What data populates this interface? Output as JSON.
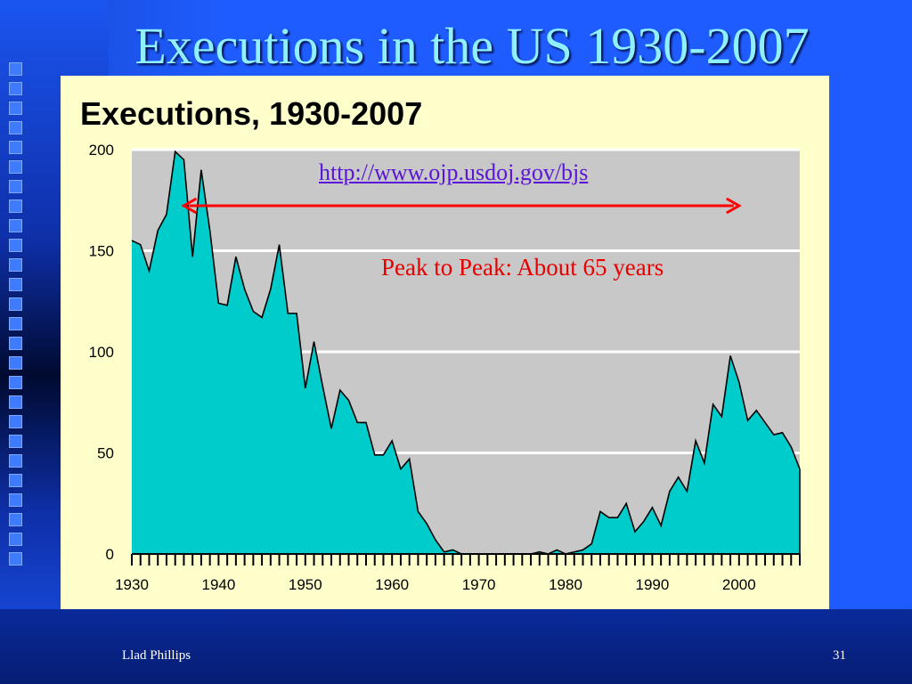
{
  "slide": {
    "title": "Executions in the US 1930-2007",
    "footer_author": "Llad Phillips",
    "page_number": "31"
  },
  "annotations": {
    "link": "http://www.ojp.usdoj.gov/bjs",
    "peak_note": "Peak to Peak: About 65 years"
  },
  "colors": {
    "area_fill": "#00cccc",
    "plot_bg": "#c8c8c8",
    "panel_bg": "#ffffcc",
    "arrow": "#ff0000",
    "title": "#8ff0ff"
  },
  "chart_data": {
    "type": "area",
    "title": "Executions, 1930-2007",
    "xlabel": "",
    "ylabel": "",
    "xlim": [
      1930,
      2007
    ],
    "ylim": [
      0,
      200
    ],
    "yticks": [
      0,
      50,
      100,
      150,
      200
    ],
    "xticks": [
      1930,
      1940,
      1950,
      1960,
      1970,
      1980,
      1990,
      2000
    ],
    "grid": "horizontal",
    "x": [
      1930,
      1931,
      1932,
      1933,
      1934,
      1935,
      1936,
      1937,
      1938,
      1939,
      1940,
      1941,
      1942,
      1943,
      1944,
      1945,
      1946,
      1947,
      1948,
      1949,
      1950,
      1951,
      1952,
      1953,
      1954,
      1955,
      1956,
      1957,
      1958,
      1959,
      1960,
      1961,
      1962,
      1963,
      1964,
      1965,
      1966,
      1967,
      1968,
      1969,
      1970,
      1971,
      1972,
      1973,
      1974,
      1975,
      1976,
      1977,
      1978,
      1979,
      1980,
      1981,
      1982,
      1983,
      1984,
      1985,
      1986,
      1987,
      1988,
      1989,
      1990,
      1991,
      1992,
      1993,
      1994,
      1995,
      1996,
      1997,
      1998,
      1999,
      2000,
      2001,
      2002,
      2003,
      2004,
      2005,
      2006,
      2007
    ],
    "values": [
      155,
      153,
      140,
      160,
      168,
      199,
      195,
      147,
      190,
      160,
      124,
      123,
      147,
      131,
      120,
      117,
      131,
      153,
      119,
      119,
      82,
      105,
      83,
      62,
      81,
      76,
      65,
      65,
      49,
      49,
      56,
      42,
      47,
      21,
      15,
      7,
      1,
      2,
      0,
      0,
      0,
      0,
      0,
      0,
      0,
      0,
      0,
      1,
      0,
      2,
      0,
      1,
      2,
      5,
      21,
      18,
      18,
      25,
      11,
      16,
      23,
      14,
      31,
      38,
      31,
      56,
      45,
      74,
      68,
      98,
      85,
      66,
      71,
      65,
      59,
      60,
      53,
      42
    ],
    "arrow_range": [
      1936,
      2000
    ]
  }
}
